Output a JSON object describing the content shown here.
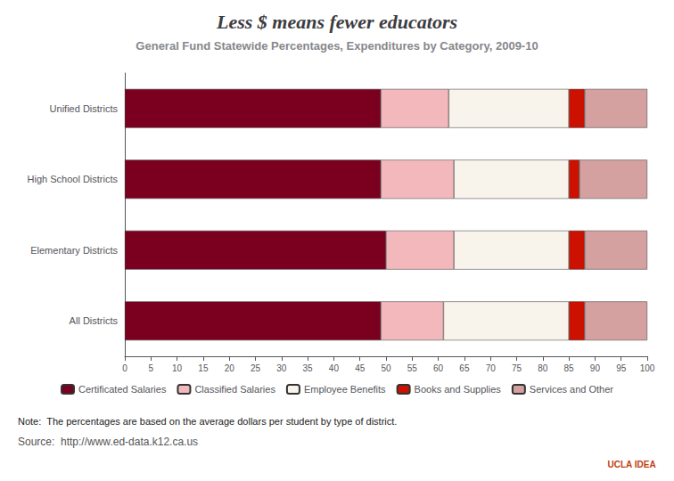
{
  "chart_data": {
    "type": "bar",
    "title": "Less $ means fewer educators",
    "subtitle": "General Fund Statewide Percentages, Expenditures by Category, 2009-10",
    "annotations": [
      "Note:  The percentages are based on the average dollars per student by type of district.",
      "Source:  http://www.ed-data.k12.ca.us",
      "UCLA IDEA"
    ],
    "categories": [
      "Unified Districts",
      "High School Districts",
      "Elementary Districts",
      "All Districts"
    ],
    "series": [
      {
        "name": "Certificated Salaries",
        "color": "#7b0020",
        "values": [
          49,
          49,
          50,
          49
        ]
      },
      {
        "name": "Classified Salaries",
        "color": "#f2b8bc",
        "values": [
          13,
          14,
          13,
          12
        ]
      },
      {
        "name": "Employee Benefits",
        "color": "#f8f4ec",
        "values": [
          23,
          22,
          22,
          24
        ]
      },
      {
        "name": "Books and Supplies",
        "color": "#cc1100",
        "values": [
          3,
          2,
          3,
          3
        ]
      },
      {
        "name": "Services and Other",
        "color": "#d4a0a0",
        "values": [
          12,
          13,
          12,
          12
        ]
      }
    ],
    "orientation": "horizontal",
    "stacked": true,
    "xlim": [
      0,
      100
    ],
    "xticks": [
      0,
      5,
      10,
      15,
      20,
      25,
      30,
      35,
      40,
      45,
      50,
      55,
      60,
      65,
      70,
      75,
      80,
      85,
      90,
      95,
      100
    ],
    "grid": false,
    "legend": "bottom"
  }
}
